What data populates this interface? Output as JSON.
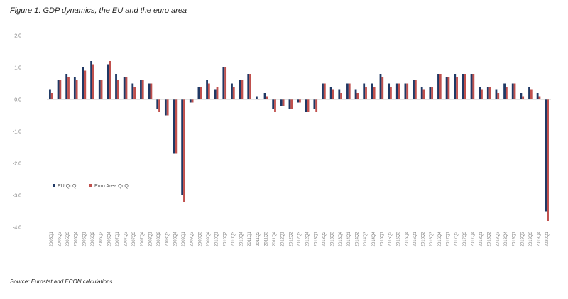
{
  "figure": {
    "title": "Figure 1: GDP dynamics, the EU and the euro area",
    "source": "Source: Eurostat and ECON calculations."
  },
  "colors": {
    "eu": "#1f3864",
    "ea": "#c0504d",
    "axis": "#bfbfbf",
    "text": "#7f7f7f"
  },
  "chart_data": {
    "type": "bar",
    "title": "",
    "xlabel": "",
    "ylabel": "",
    "ylim": [
      -4.0,
      2.0
    ],
    "yticks": [
      2.0,
      1.0,
      0.0,
      -1.0,
      -2.0,
      -3.0,
      -4.0
    ],
    "ytick_labels": [
      "2.0",
      "1.0",
      "0.0",
      "-1.0",
      "-2.0",
      "-3.0",
      "-4.0"
    ],
    "grid": false,
    "legend_position": "left-middle",
    "categories": [
      "2005Q1",
      "2005Q2",
      "2005Q3",
      "2005Q4",
      "2006Q1",
      "2006Q2",
      "2006Q3",
      "2006Q4",
      "2007Q1",
      "2007Q2",
      "2007Q3",
      "2007Q4",
      "2008Q1",
      "2008Q2",
      "2008Q3",
      "2008Q4",
      "2009Q1",
      "2009Q2",
      "2009Q3",
      "2009Q4",
      "2010Q1",
      "2010Q2",
      "2010Q3",
      "2010Q4",
      "2011Q1",
      "2011Q2",
      "2011Q3",
      "2011Q4",
      "2012Q1",
      "2012Q2",
      "2012Q3",
      "2012Q4",
      "2013Q1",
      "2013Q2",
      "2013Q3",
      "2013Q4",
      "2014Q1",
      "2014Q2",
      "2014Q3",
      "2014Q4",
      "2015Q1",
      "2015Q2",
      "2015Q3",
      "2015Q4",
      "2016Q1",
      "2016Q2",
      "2016Q3",
      "2016Q4",
      "2017Q1",
      "2017Q2",
      "2017Q3",
      "2017Q4",
      "2018Q1",
      "2018Q2",
      "2018Q3",
      "2018Q4",
      "2019Q1",
      "2019Q2",
      "2019Q3",
      "2019Q4",
      "2020Q1"
    ],
    "series": [
      {
        "name": "EU QoQ",
        "values": [
          0.3,
          0.6,
          0.8,
          0.7,
          1.0,
          1.2,
          0.6,
          1.1,
          0.8,
          0.7,
          0.5,
          0.6,
          0.5,
          -0.3,
          -0.5,
          -1.7,
          -3.0,
          -0.1,
          0.4,
          0.6,
          0.3,
          1.0,
          0.5,
          0.6,
          0.8,
          0.1,
          0.2,
          -0.3,
          -0.2,
          -0.3,
          -0.1,
          -0.4,
          -0.3,
          0.5,
          0.4,
          0.3,
          0.5,
          0.3,
          0.5,
          0.5,
          0.8,
          0.5,
          0.5,
          0.5,
          0.6,
          0.4,
          0.4,
          0.8,
          0.7,
          0.8,
          0.8,
          0.8,
          0.4,
          0.4,
          0.3,
          0.5,
          0.5,
          0.2,
          0.4,
          0.2,
          -3.5
        ]
      },
      {
        "name": "Euro Area QoQ",
        "values": [
          0.2,
          0.6,
          0.7,
          0.6,
          0.9,
          1.1,
          0.6,
          1.2,
          0.6,
          0.7,
          0.4,
          0.6,
          0.5,
          -0.4,
          -0.5,
          -1.7,
          -3.2,
          -0.1,
          0.4,
          0.5,
          0.4,
          1.0,
          0.4,
          0.6,
          0.8,
          0.0,
          0.1,
          -0.4,
          -0.2,
          -0.3,
          -0.1,
          -0.4,
          -0.4,
          0.5,
          0.3,
          0.2,
          0.5,
          0.2,
          0.4,
          0.4,
          0.7,
          0.4,
          0.5,
          0.5,
          0.6,
          0.3,
          0.4,
          0.8,
          0.7,
          0.7,
          0.8,
          0.8,
          0.3,
          0.4,
          0.2,
          0.4,
          0.5,
          0.1,
          0.3,
          0.1,
          -3.8
        ]
      }
    ]
  }
}
